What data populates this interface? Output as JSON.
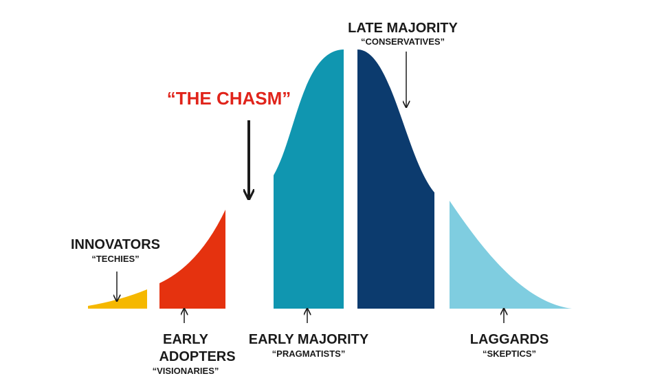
{
  "title": "“THE CHASM”",
  "segments": [
    {
      "label": "INNOVATORS",
      "sublabel": "“TECHIES”"
    },
    {
      "label_lines": [
        "EARLY",
        "ADOPTERS"
      ],
      "sublabel": "“VISIONARIES”"
    },
    {
      "label": "EARLY MAJORITY",
      "sublabel": "“PRAGMATISTS”"
    },
    {
      "label": "LATE MAJORITY",
      "sublabel": "“CONSERVATIVES”"
    },
    {
      "label": "LAGGARDS",
      "sublabel": "“SKEPTICS”"
    }
  ]
}
